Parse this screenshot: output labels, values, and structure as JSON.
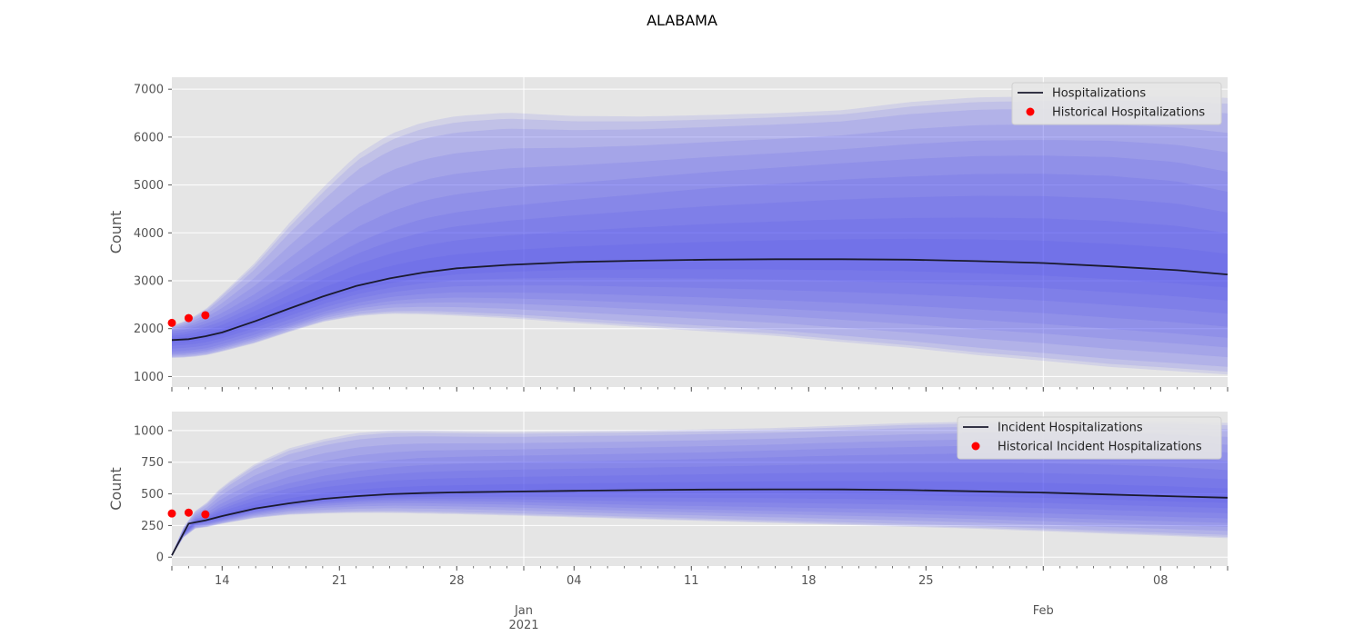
{
  "title": "ALABAMA",
  "colors": {
    "panel_bg": "#e5e5e5",
    "grid": "#ffffff",
    "band": "#4646f0",
    "median": "#1a1a2e",
    "historical": "#ff0000"
  },
  "chart_data": [
    {
      "type": "line",
      "id": "hospitalizations",
      "ylabel": "Count",
      "ylim": [
        780,
        7250
      ],
      "yticks": [
        1000,
        2000,
        3000,
        4000,
        5000,
        6000,
        7000
      ],
      "x_start_date": "2020-12-11",
      "x_end_date": "2021-02-12",
      "grid": true,
      "legend_position": "top-right",
      "legend": [
        "Hospitalizations",
        "Historical Hospitalizations"
      ],
      "forecast": {
        "name": "Hospitalizations",
        "dates": [
          "2020-12-11",
          "2020-12-12",
          "2020-12-13",
          "2020-12-14",
          "2020-12-16",
          "2020-12-18",
          "2020-12-20",
          "2020-12-22",
          "2020-12-24",
          "2020-12-26",
          "2020-12-28",
          "2020-12-31",
          "2021-01-04",
          "2021-01-08",
          "2021-01-12",
          "2021-01-16",
          "2021-01-20",
          "2021-01-24",
          "2021-01-28",
          "2021-02-01",
          "2021-02-05",
          "2021-02-09",
          "2021-02-12"
        ],
        "median": [
          1760,
          1780,
          1840,
          1920,
          2160,
          2420,
          2670,
          2890,
          3050,
          3170,
          3260,
          3330,
          3390,
          3420,
          3440,
          3450,
          3450,
          3440,
          3410,
          3370,
          3300,
          3220,
          3130
        ],
        "band_levels": [
          0.98,
          0.95,
          0.9,
          0.8,
          0.7,
          0.6,
          0.5,
          0.4,
          0.3,
          0.2,
          0.1
        ],
        "upper_outer": [
          2060,
          2190,
          2400,
          2720,
          3390,
          4200,
          4940,
          5620,
          6060,
          6310,
          6440,
          6510,
          6440,
          6430,
          6460,
          6500,
          6560,
          6730,
          6830,
          6850,
          6870,
          6850,
          6820
        ],
        "lower_outer": [
          1390,
          1400,
          1440,
          1520,
          1700,
          1930,
          2140,
          2260,
          2310,
          2300,
          2270,
          2220,
          2120,
          2030,
          1940,
          1850,
          1720,
          1600,
          1450,
          1330,
          1200,
          1110,
          1040
        ],
        "upper_mid": [
          1960,
          2010,
          2130,
          2260,
          2630,
          3050,
          3470,
          3870,
          4180,
          4410,
          4550,
          4680,
          4820,
          4950,
          5080,
          5180,
          5280,
          5350,
          5410,
          5420,
          5380,
          5260,
          5030
        ],
        "lower_mid": [
          1500,
          1520,
          1560,
          1650,
          1850,
          2080,
          2320,
          2500,
          2620,
          2680,
          2710,
          2700,
          2670,
          2620,
          2570,
          2510,
          2450,
          2380,
          2300,
          2220,
          2120,
          2020,
          1930
        ]
      },
      "historical": {
        "name": "Historical Hospitalizations",
        "dates": [
          "2020-12-11",
          "2020-12-12",
          "2020-12-13"
        ],
        "values": [
          2120,
          2220,
          2280
        ]
      }
    },
    {
      "type": "line",
      "id": "incident_hospitalizations",
      "ylabel": "Count",
      "ylim": [
        -70,
        1150
      ],
      "yticks": [
        0,
        250,
        500,
        750,
        1000
      ],
      "x_start_date": "2020-12-11",
      "x_end_date": "2021-02-12",
      "grid": true,
      "legend_position": "top-right",
      "legend": [
        "Incident Hospitalizations",
        "Historical Incident Hospitalizations"
      ],
      "forecast": {
        "name": "Incident Hospitalizations",
        "dates": [
          "2020-12-11",
          "2020-12-12",
          "2020-12-13",
          "2020-12-14",
          "2020-12-16",
          "2020-12-18",
          "2020-12-20",
          "2020-12-22",
          "2020-12-24",
          "2020-12-26",
          "2020-12-28",
          "2020-12-31",
          "2021-01-04",
          "2021-01-08",
          "2021-01-12",
          "2021-01-16",
          "2021-01-20",
          "2021-01-24",
          "2021-01-28",
          "2021-02-01",
          "2021-02-05",
          "2021-02-09",
          "2021-02-12"
        ],
        "median": [
          15,
          265,
          290,
          325,
          385,
          425,
          460,
          482,
          498,
          506,
          512,
          518,
          524,
          530,
          534,
          536,
          535,
          530,
          520,
          510,
          495,
          480,
          470
        ],
        "band_levels": [
          0.98,
          0.95,
          0.9,
          0.8,
          0.7,
          0.6,
          0.5,
          0.4,
          0.3,
          0.2,
          0.1
        ],
        "upper_outer": [
          25,
          330,
          420,
          560,
          740,
          860,
          930,
          980,
          1000,
          1000,
          995,
          990,
          995,
          1000,
          1010,
          1020,
          1040,
          1060,
          1070,
          1075,
          1075,
          1070,
          1060
        ],
        "lower_outer": [
          8,
          220,
          235,
          265,
          310,
          335,
          345,
          350,
          350,
          345,
          340,
          330,
          315,
          300,
          285,
          270,
          255,
          240,
          225,
          205,
          185,
          165,
          150
        ],
        "upper_mid": [
          20,
          290,
          330,
          410,
          520,
          600,
          660,
          700,
          730,
          750,
          760,
          770,
          780,
          790,
          800,
          815,
          830,
          840,
          850,
          850,
          840,
          820,
          790
        ],
        "lower_mid": [
          10,
          240,
          260,
          290,
          350,
          390,
          415,
          430,
          440,
          440,
          435,
          430,
          415,
          400,
          390,
          380,
          370,
          360,
          345,
          330,
          315,
          300,
          290
        ]
      },
      "historical": {
        "name": "Historical Incident Hospitalizations",
        "dates": [
          "2020-12-11",
          "2020-12-12",
          "2020-12-13"
        ],
        "values": [
          345,
          352,
          338
        ]
      }
    }
  ],
  "x_axis": {
    "minor_labels": [
      {
        "date": "2020-12-14",
        "label": "14"
      },
      {
        "date": "2020-12-21",
        "label": "21"
      },
      {
        "date": "2020-12-28",
        "label": "28"
      },
      {
        "date": "2021-01-04",
        "label": "04"
      },
      {
        "date": "2021-01-11",
        "label": "11"
      },
      {
        "date": "2021-01-18",
        "label": "18"
      },
      {
        "date": "2021-01-25",
        "label": "25"
      },
      {
        "date": "2021-02-08",
        "label": "08"
      }
    ],
    "major_labels": [
      {
        "date": "2021-01-01",
        "label": "Jan",
        "sublabel": "2021"
      },
      {
        "date": "2021-02-01",
        "label": "Feb",
        "sublabel": ""
      }
    ]
  }
}
